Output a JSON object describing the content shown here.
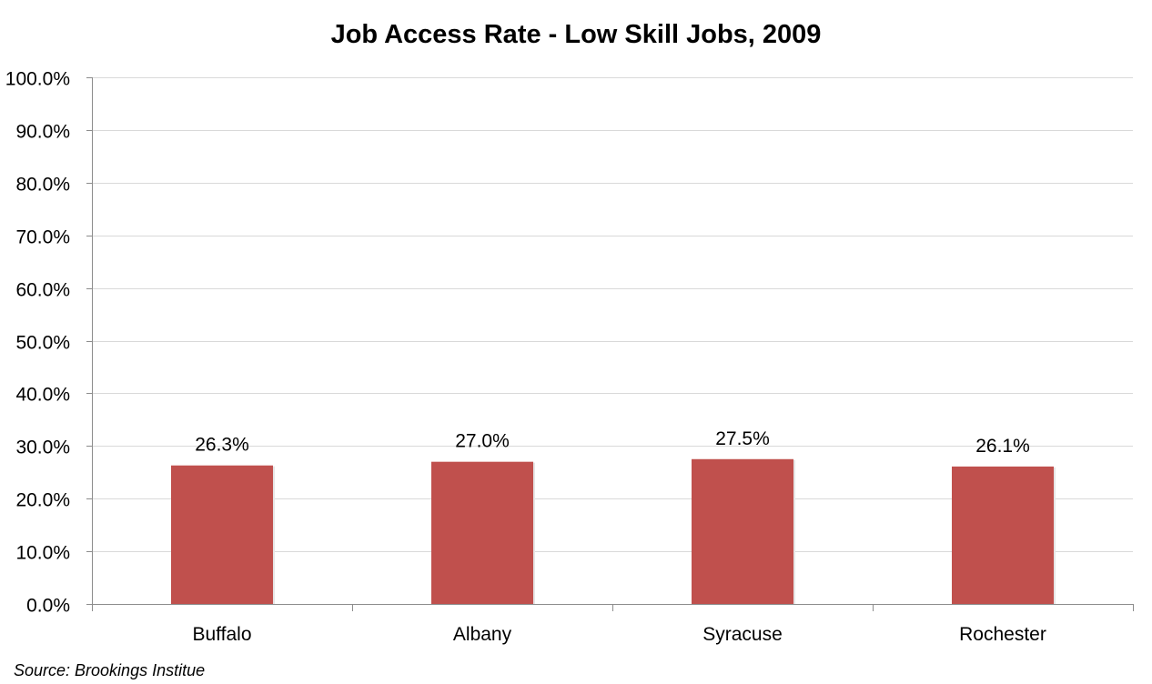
{
  "chart_data": {
    "type": "bar",
    "title": "Job Access Rate - Low Skill Jobs, 2009",
    "categories": [
      "Buffalo",
      "Albany",
      "Syracuse",
      "Rochester"
    ],
    "values": [
      26.3,
      27.0,
      27.5,
      26.1
    ],
    "value_labels": [
      "26.3%",
      "27.0%",
      "27.5%",
      "26.1%"
    ],
    "xlabel": "",
    "ylabel": "",
    "ylim": [
      0,
      100
    ],
    "yticks": [
      0,
      10,
      20,
      30,
      40,
      50,
      60,
      70,
      80,
      90,
      100
    ],
    "ytick_labels": [
      "0.0%",
      "10.0%",
      "20.0%",
      "30.0%",
      "40.0%",
      "50.0%",
      "60.0%",
      "70.0%",
      "80.0%",
      "90.0%",
      "100.0%"
    ],
    "grid": true,
    "legend": "none",
    "bar_color": "#c0504d",
    "source": "Source: Brookings Institue"
  }
}
